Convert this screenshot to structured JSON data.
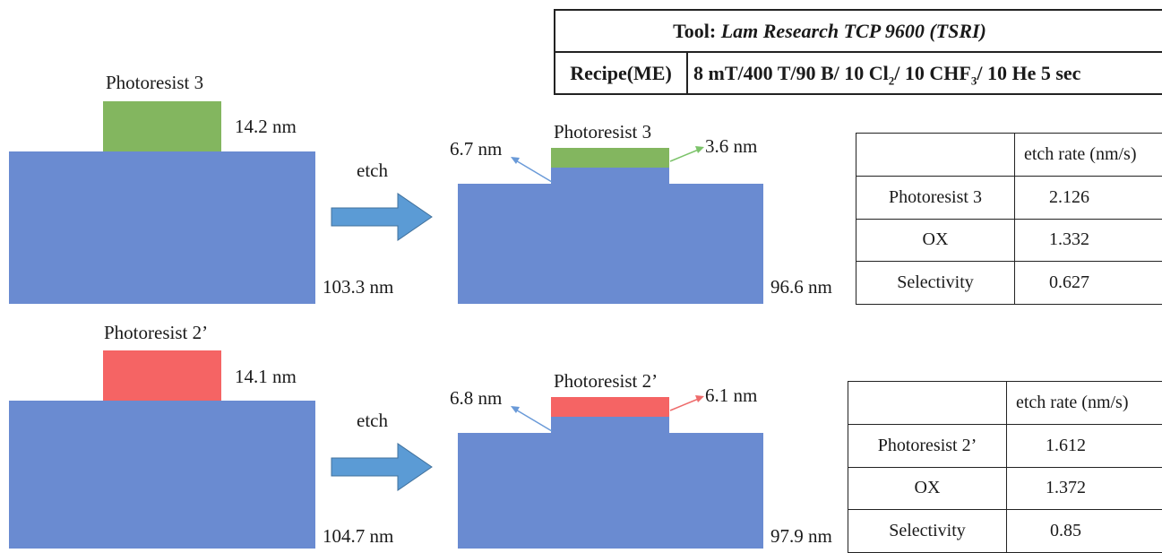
{
  "colors": {
    "oxide": "#6a8bd1",
    "photoresist_green": "#83b65f",
    "photoresist_red": "#f56464",
    "etch_arrow": "#5b9bd5",
    "pointer_blue": "#6a9ad8",
    "pointer_green": "#7cc36a",
    "pointer_red": "#ee6b6b"
  },
  "tool_table": {
    "tool_label": "Tool: ",
    "tool_name": "Lam Research TCP 9600 (TSRI)",
    "recipe_label": "Recipe(ME)",
    "recipe_part1": "8 mT/400 T/90 B/ 10 Cl",
    "recipe_sub1": "2",
    "recipe_part2": "/ 10 CHF",
    "recipe_sub2": "3",
    "recipe_part3": "/ 10 He 5 sec"
  },
  "etch_arrow_label": "etch",
  "row1": {
    "before_resist_label": "Photoresist 3",
    "before_resist_thickness": "14.2 nm",
    "before_oxide_thickness": "103.3 nm",
    "after_resist_label": "Photoresist 3",
    "after_step_height": "6.7 nm",
    "after_resist_thickness": "3.6 nm",
    "after_oxide_thickness": "96.6 nm",
    "table": {
      "header_empty": "",
      "header": "etch rate (nm/s)",
      "rows": [
        {
          "label": "Photoresist 3",
          "value": "2.126"
        },
        {
          "label": "OX",
          "value": "1.332"
        },
        {
          "label": "Selectivity",
          "value": "0.627"
        }
      ]
    }
  },
  "row2": {
    "before_resist_label": "Photoresist 2’",
    "before_resist_thickness": "14.1 nm",
    "before_oxide_thickness": "104.7 nm",
    "after_resist_label": "Photoresist 2’",
    "after_step_height": "6.8 nm",
    "after_resist_thickness": "6.1 nm",
    "after_oxide_thickness": "97.9 nm",
    "table": {
      "header_empty": "",
      "header": "etch rate (nm/s)",
      "rows": [
        {
          "label": "Photoresist 2’",
          "value": "1.612"
        },
        {
          "label": "OX",
          "value": "1.372"
        },
        {
          "label": "Selectivity",
          "value": "0.85"
        }
      ]
    }
  }
}
